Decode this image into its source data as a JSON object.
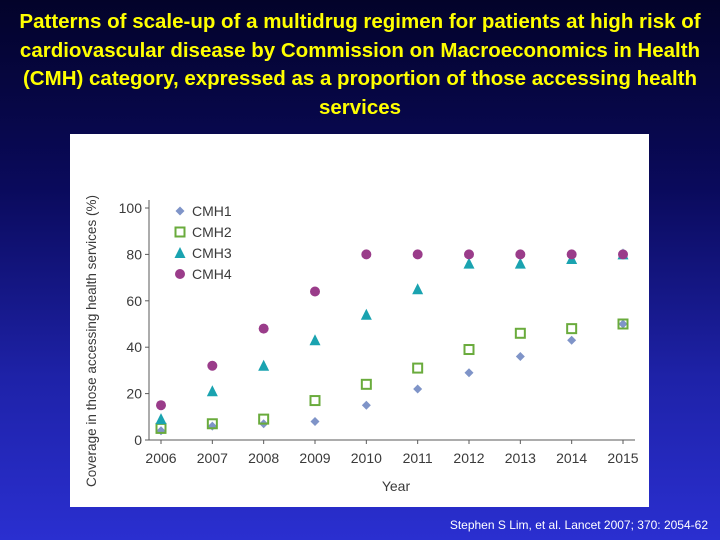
{
  "slide": {
    "title": "Patterns of scale-up of a multidrug regimen for patients at high risk of cardiovascular disease by Commission on Macroeconomics in Health (CMH) category, expressed as a proportion of those accessing health services",
    "citation": "Stephen S Lim, et al. Lancet 2007; 370: 2054-62"
  },
  "chart_data": {
    "type": "scatter",
    "title": "",
    "xlabel": "Year",
    "ylabel": "Coverage in those accessing health services (%)",
    "x": [
      2006,
      2007,
      2008,
      2009,
      2010,
      2011,
      2012,
      2013,
      2014,
      2015
    ],
    "xlim": [
      2006,
      2015
    ],
    "ylim": [
      0,
      100
    ],
    "yticks": [
      0,
      20,
      40,
      60,
      80,
      100
    ],
    "grid": false,
    "legend_position": "top-left",
    "series": [
      {
        "name": "CMH1",
        "marker": "diamond",
        "color": "#7f94c8",
        "values": [
          4,
          6,
          7,
          8,
          15,
          22,
          29,
          36,
          43,
          50
        ]
      },
      {
        "name": "CMH2",
        "marker": "open-square",
        "color": "#6aab3c",
        "values": [
          5,
          7,
          9,
          17,
          24,
          31,
          39,
          46,
          48,
          50
        ]
      },
      {
        "name": "CMH3",
        "marker": "triangle",
        "color": "#1aa3b0",
        "values": [
          9,
          21,
          32,
          43,
          54,
          65,
          76,
          76,
          78,
          80
        ]
      },
      {
        "name": "CMH4",
        "marker": "circle",
        "color": "#9a3c8a",
        "values": [
          15,
          32,
          48,
          64,
          80,
          80,
          80,
          80,
          80,
          80
        ]
      }
    ]
  }
}
